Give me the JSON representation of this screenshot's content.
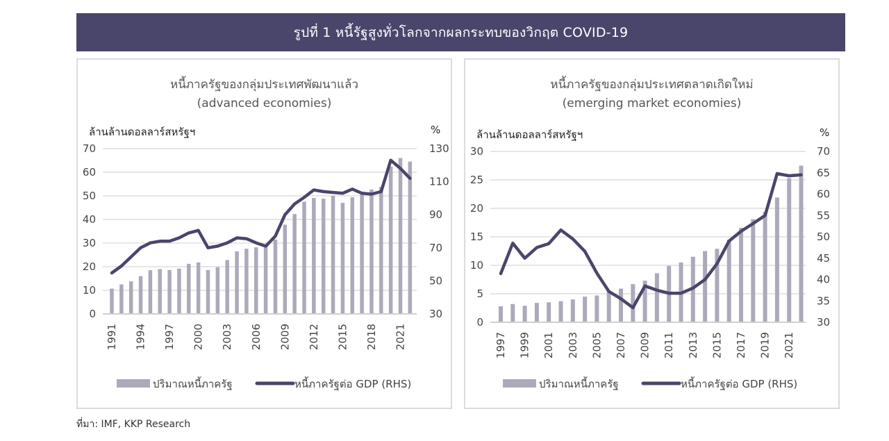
{
  "banner": {
    "title": "รูปที่ 1 หนี้รัฐสูงทั่วโลกจากผลกระทบของวิกฤต COVID-19"
  },
  "source": "ที่มา: IMF, KKP Research",
  "colors": {
    "banner": "#4a456b",
    "bar": "#acaaba",
    "line": "#4a456b",
    "grid": "#dedede"
  },
  "chart_data": [
    {
      "type": "bar+line",
      "title": "หนี้ภาครัฐของกลุ่มประเทศพัฒนาแล้ว",
      "subtitle": "(advanced economies)",
      "ylabel": "ล้านล้านดอลลาร์สหรัฐฯ",
      "y2label": "%",
      "ylim": [
        0,
        70
      ],
      "yticks": [
        "0",
        "10",
        "20",
        "30",
        "40",
        "50",
        "60",
        "70"
      ],
      "y2lim": [
        30,
        130
      ],
      "y2ticks": [
        "30",
        "50",
        "70",
        "90",
        "110",
        "130"
      ],
      "grid": true,
      "legend_position": "bottom",
      "x": [
        1991,
        1992,
        1993,
        1994,
        1995,
        1996,
        1997,
        1998,
        1999,
        2000,
        2001,
        2002,
        2003,
        2004,
        2005,
        2006,
        2007,
        2008,
        2009,
        2010,
        2011,
        2012,
        2013,
        2014,
        2015,
        2016,
        2017,
        2018,
        2019,
        2020,
        2021,
        2022
      ],
      "xtick_labels": [
        "1991",
        "1994",
        "1997",
        "2000",
        "2003",
        "2006",
        "2009",
        "2012",
        "2015",
        "2018",
        "2021"
      ],
      "series": [
        {
          "name": "ปริมาณหนี้ภาครัฐ",
          "type": "bar",
          "axis": "left",
          "values": [
            10.7,
            12.5,
            13.8,
            16.0,
            18.5,
            19.0,
            18.6,
            19.2,
            21.2,
            21.8,
            18.6,
            19.8,
            22.8,
            26.5,
            27.6,
            28.2,
            29.5,
            31.5,
            37.8,
            42.3,
            47.5,
            49.1,
            48.8,
            50.0,
            47.0,
            49.4,
            50.6,
            52.7,
            53.8,
            62.4,
            66.0,
            64.5
          ]
        },
        {
          "name": "หนี้ภาครัฐต่อ GDP (RHS)",
          "type": "line",
          "axis": "right",
          "values": [
            54.8,
            59.0,
            64.5,
            70.0,
            73.0,
            74.0,
            74.0,
            76.0,
            79.0,
            80.5,
            70.0,
            71.0,
            73.0,
            76.0,
            75.5,
            73.0,
            71.0,
            77.0,
            90.0,
            96.5,
            100.5,
            105.0,
            104.0,
            103.5,
            103.0,
            105.5,
            103.0,
            102.5,
            104.0,
            123.0,
            118.0,
            112.0
          ]
        }
      ]
    },
    {
      "type": "bar+line",
      "title": "หนี้ภาครัฐของกลุ่มประเทศตลาดเกิดใหม่",
      "subtitle": "(emerging market economies)",
      "ylabel": "ล้านล้านดอลลาร์สหรัฐฯ",
      "y2label": "%",
      "ylim": [
        0,
        30
      ],
      "yticks": [
        "0",
        "5",
        "10",
        "15",
        "20",
        "25",
        "30"
      ],
      "y2lim": [
        30,
        70
      ],
      "y2ticks": [
        "30",
        "35",
        "40",
        "45",
        "50",
        "55",
        "60",
        "65",
        "70"
      ],
      "grid": true,
      "legend_position": "bottom",
      "x": [
        1997,
        1998,
        1999,
        2000,
        2001,
        2002,
        2003,
        2004,
        2005,
        2006,
        2007,
        2008,
        2009,
        2010,
        2011,
        2012,
        2013,
        2014,
        2015,
        2016,
        2017,
        2018,
        2019,
        2020,
        2021,
        2022
      ],
      "xtick_labels": [
        "1997",
        "1999",
        "2001",
        "2003",
        "2005",
        "2007",
        "2009",
        "2011",
        "2013",
        "2015",
        "2017",
        "2019",
        "2021"
      ],
      "series": [
        {
          "name": "ปริมาณหนี้ภาครัฐ",
          "type": "bar",
          "axis": "left",
          "values": [
            2.8,
            3.2,
            2.9,
            3.4,
            3.5,
            3.7,
            4.0,
            4.5,
            4.7,
            5.5,
            5.9,
            6.7,
            7.3,
            8.6,
            9.9,
            10.5,
            11.5,
            12.5,
            12.9,
            14.5,
            16.6,
            18.1,
            19.4,
            21.9,
            25.3,
            27.5
          ]
        },
        {
          "name": "หนี้ภาครัฐต่อ GDP (RHS)",
          "type": "line",
          "axis": "right",
          "values": [
            41.4,
            48.5,
            45.0,
            47.5,
            48.4,
            51.6,
            49.5,
            46.6,
            41.5,
            37.2,
            35.5,
            33.4,
            38.5,
            37.5,
            36.8,
            36.8,
            38.0,
            40.0,
            43.7,
            49.0,
            51.3,
            53.1,
            55.0,
            64.8,
            64.3,
            64.5
          ]
        }
      ]
    }
  ]
}
